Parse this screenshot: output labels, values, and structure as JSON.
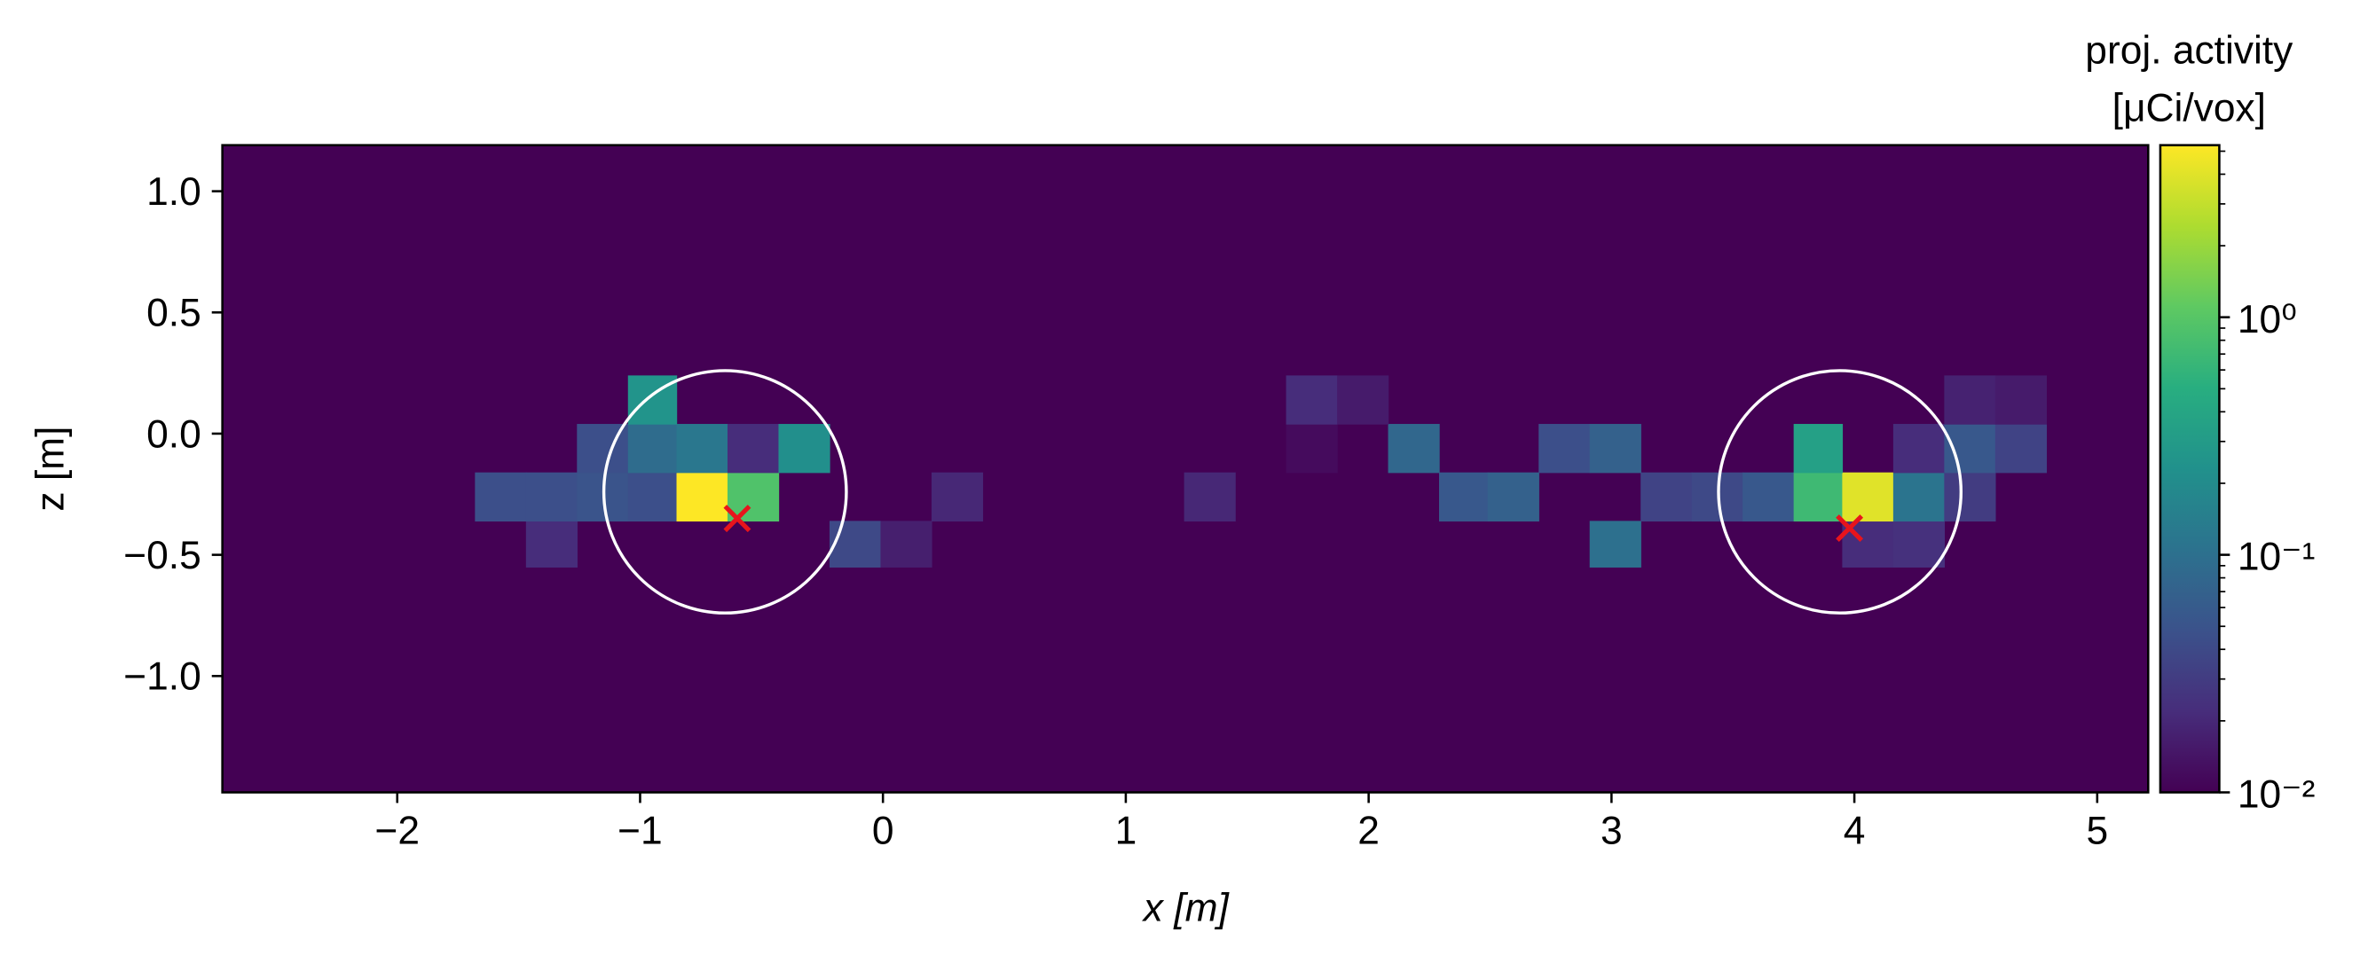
{
  "chart_data": {
    "type": "heatmap",
    "xlabel": "x [m]",
    "ylabel": "z [m]",
    "xlim": [
      -2.72,
      5.21
    ],
    "ylim": [
      -1.48,
      1.19
    ],
    "xticks": [
      {
        "value": -2,
        "label": "−2"
      },
      {
        "value": -1,
        "label": "−1"
      },
      0,
      1,
      2,
      3,
      4,
      5
    ],
    "yticks": [
      {
        "value": -1.0,
        "label": "−1.0"
      },
      {
        "value": -0.5,
        "label": "−0.5"
      },
      {
        "value": 0.0,
        "label": "0.0"
      },
      {
        "value": 0.5,
        "label": "0.5"
      },
      {
        "value": 1.0,
        "label": "1.0"
      }
    ],
    "colormap": "viridis",
    "x_edges": [
      -1.68,
      -1.47,
      -1.26,
      -1.05,
      -0.85,
      -0.64,
      -0.43,
      -0.22,
      -0.01,
      0.2,
      0.41,
      0.62,
      0.82,
      1.03,
      1.24,
      1.45,
      1.66,
      1.87,
      2.08,
      2.29,
      2.49,
      2.7,
      2.91,
      3.12,
      3.33,
      3.54,
      3.75,
      3.95,
      4.16,
      4.37,
      4.58,
      4.79
    ],
    "z_edges": [
      -0.55,
      -0.36,
      -0.16,
      0.04,
      0.24
    ],
    "values": [
      [
        null,
        0.022,
        null,
        null,
        null,
        null,
        null,
        0.04,
        0.017,
        null,
        null,
        null,
        null,
        null,
        null,
        null,
        null,
        null,
        null,
        null,
        null,
        null,
        0.1,
        null,
        null,
        null,
        null,
        0.022,
        0.024,
        null,
        null
      ],
      [
        0.045,
        0.045,
        0.05,
        0.045,
        5.3,
        0.9,
        null,
        null,
        null,
        0.02,
        null,
        null,
        null,
        null,
        0.02,
        null,
        null,
        null,
        null,
        0.055,
        0.07,
        null,
        null,
        0.035,
        0.04,
        0.055,
        0.7,
        4.0,
        0.11,
        0.03,
        null
      ],
      [
        null,
        null,
        0.045,
        0.09,
        0.12,
        0.022,
        0.22,
        null,
        null,
        null,
        null,
        null,
        null,
        null,
        null,
        null,
        0.012,
        null,
        0.08,
        null,
        null,
        0.045,
        0.07,
        null,
        null,
        null,
        0.35,
        null,
        0.022,
        0.055,
        0.035
      ],
      [
        null,
        null,
        null,
        0.25,
        null,
        null,
        null,
        null,
        null,
        null,
        null,
        null,
        null,
        null,
        null,
        null,
        0.022,
        0.016,
        null,
        null,
        null,
        null,
        null,
        null,
        null,
        null,
        null,
        null,
        null,
        0.018,
        0.016
      ]
    ],
    "circles": {
      "x": [
        -0.65,
        3.94
      ],
      "z": [
        -0.24,
        -0.24
      ],
      "radius": [
        0.5,
        0.5
      ],
      "color": "#ffffff"
    },
    "markers": {
      "x": [
        -0.6,
        3.98
      ],
      "z": [
        -0.35,
        -0.39
      ],
      "color": "#e8141c"
    },
    "colorbar": {
      "label": [
        "proj. activity",
        "[μCi/vox]"
      ],
      "scale": "log",
      "lim": [
        0.01,
        5.3
      ],
      "ticks": [
        {
          "value": 0.01,
          "label": "10⁻²"
        },
        {
          "value": 0.1,
          "label": "10⁻¹"
        },
        {
          "value": 1,
          "label": "10⁰"
        }
      ],
      "minorticks": [
        0.02,
        0.03,
        0.04,
        0.05,
        0.06,
        0.07,
        0.08,
        0.09,
        0.2,
        0.3,
        0.4,
        0.5,
        0.6,
        0.7,
        0.8,
        0.9,
        2,
        3,
        4,
        5
      ]
    }
  }
}
